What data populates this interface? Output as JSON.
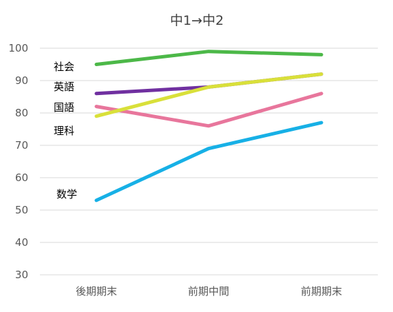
{
  "chart_data": {
    "type": "line",
    "title": "中1→中2",
    "categories": [
      "後期期末",
      "前期中間",
      "前期期末"
    ],
    "ylim": [
      30,
      100
    ],
    "yticks": [
      30,
      40,
      50,
      60,
      70,
      80,
      90,
      100
    ],
    "grid": true,
    "series": [
      {
        "name": "社会",
        "values": [
          95,
          99,
          98
        ],
        "color": "#4cb848"
      },
      {
        "name": "英語",
        "values": [
          86,
          88,
          92
        ],
        "color": "#7030a0"
      },
      {
        "name": "国語",
        "values": [
          82,
          76,
          86
        ],
        "color": "#e8769c"
      },
      {
        "name": "理科",
        "values": [
          79,
          88,
          92
        ],
        "color": "#d9e03a"
      },
      {
        "name": "数学",
        "values": [
          53,
          69,
          77
        ],
        "color": "#17b0e6"
      }
    ]
  }
}
